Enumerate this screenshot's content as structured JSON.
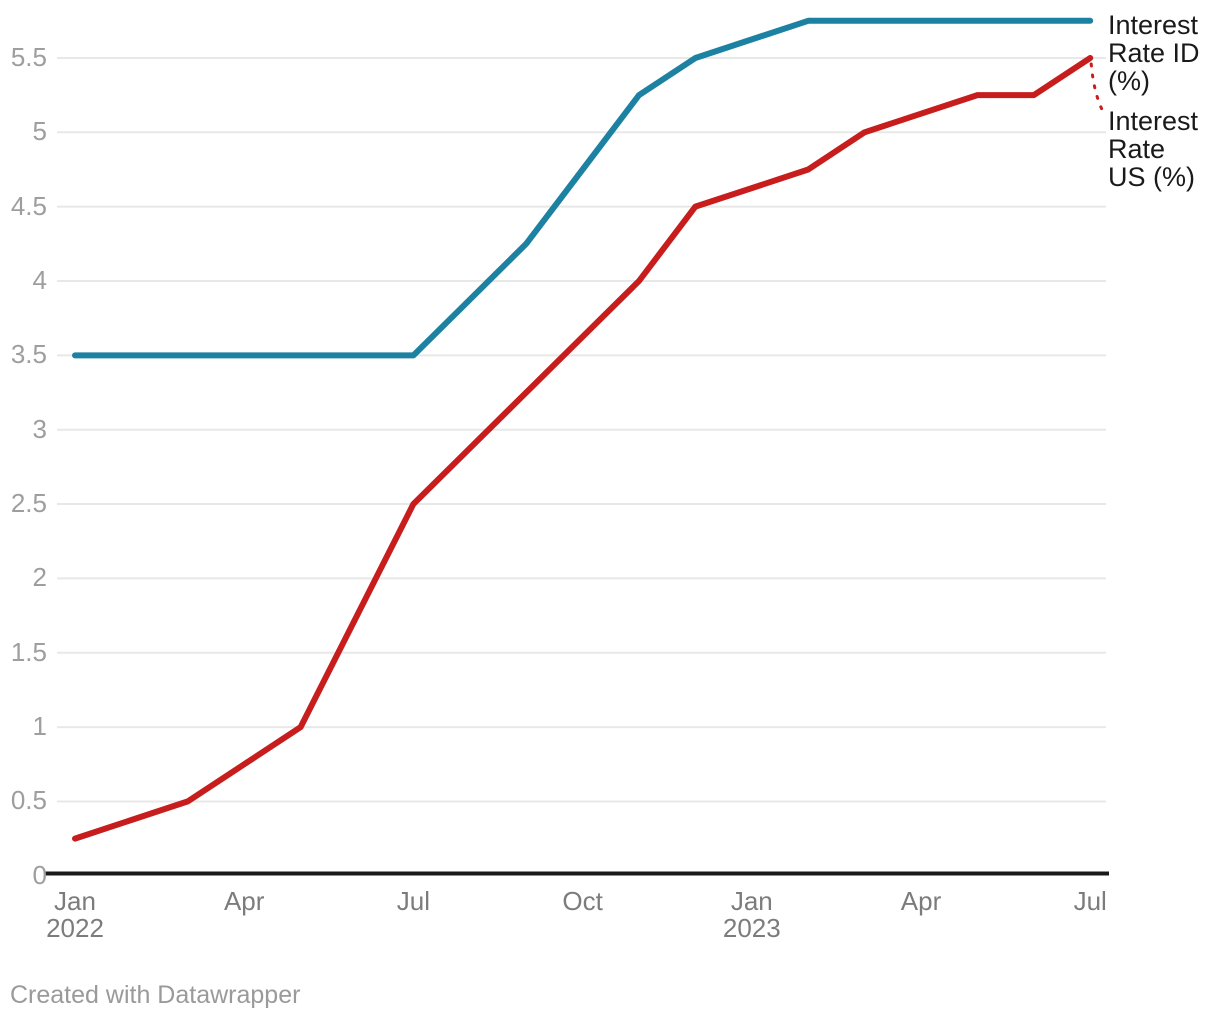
{
  "chart_data": {
    "type": "line",
    "title": "",
    "xlabel": "",
    "ylabel": "",
    "x": [
      "Jan 2022",
      "Feb 2022",
      "Mar 2022",
      "Apr 2022",
      "May 2022",
      "Jun 2022",
      "Jul 2022",
      "Aug 2022",
      "Sep 2022",
      "Oct 2022",
      "Nov 2022",
      "Dec 2022",
      "Jan 2023",
      "Feb 2023",
      "Mar 2023",
      "Apr 2023",
      "May 2023",
      "Jun 2023",
      "Jul 2023"
    ],
    "series": [
      {
        "id": "id",
        "name": "Interest Rate ID (%)",
        "color": "#1d81a2",
        "label_lines": [
          "Interest",
          "Rate ID",
          "(%)"
        ],
        "values": [
          3.5,
          3.5,
          3.5,
          3.5,
          3.5,
          3.5,
          3.5,
          3.875,
          4.25,
          4.75,
          5.25,
          5.5,
          5.625,
          5.75,
          5.75,
          5.75,
          5.75,
          5.75,
          5.75
        ]
      },
      {
        "id": "us",
        "name": "Interest Rate US (%)",
        "color": "#c71e1d",
        "label_lines": [
          "Interest",
          "Rate",
          "US (%)"
        ],
        "values": [
          0.25,
          0.375,
          0.5,
          0.75,
          1.0,
          1.75,
          2.5,
          2.875,
          3.25,
          3.625,
          4.0,
          4.5,
          4.625,
          4.75,
          5.0,
          5.125,
          5.25,
          5.25,
          5.5
        ]
      }
    ],
    "ylim": [
      0,
      5.95
    ],
    "y_ticks": [
      {
        "value": 0,
        "label": "0"
      },
      {
        "value": 0.5,
        "label": "0.5"
      },
      {
        "value": 1,
        "label": "1"
      },
      {
        "value": 1.5,
        "label": "1.5"
      },
      {
        "value": 2,
        "label": "2"
      },
      {
        "value": 2.5,
        "label": "2.5"
      },
      {
        "value": 3,
        "label": "3"
      },
      {
        "value": 3.5,
        "label": "3.5"
      },
      {
        "value": 4,
        "label": "4"
      },
      {
        "value": 4.5,
        "label": "4.5"
      },
      {
        "value": 5,
        "label": "5"
      },
      {
        "value": 5.5,
        "label": "5.5"
      }
    ],
    "x_ticks": [
      {
        "month_index": 0,
        "label": "Jan",
        "year": "2022"
      },
      {
        "month_index": 3,
        "label": "Apr",
        "year": ""
      },
      {
        "month_index": 6,
        "label": "Jul",
        "year": ""
      },
      {
        "month_index": 9,
        "label": "Oct",
        "year": ""
      },
      {
        "month_index": 12,
        "label": "Jan",
        "year": "2023"
      },
      {
        "month_index": 15,
        "label": "Apr",
        "year": ""
      },
      {
        "month_index": 18,
        "label": "Jul",
        "year": ""
      }
    ],
    "grid": "horizontal-only",
    "legend_position": "direct-labels-right-of-line-ends"
  },
  "footer": {
    "credit": "Created with Datawrapper"
  },
  "colors": {
    "series_id_blue": "#1d81a2",
    "series_us_red": "#c71e1d",
    "gridline": "#e8e8e8",
    "axis_line": "#1a1a1a",
    "tick_text": "#9e9e9e",
    "label_text": "#1a1a1a"
  }
}
